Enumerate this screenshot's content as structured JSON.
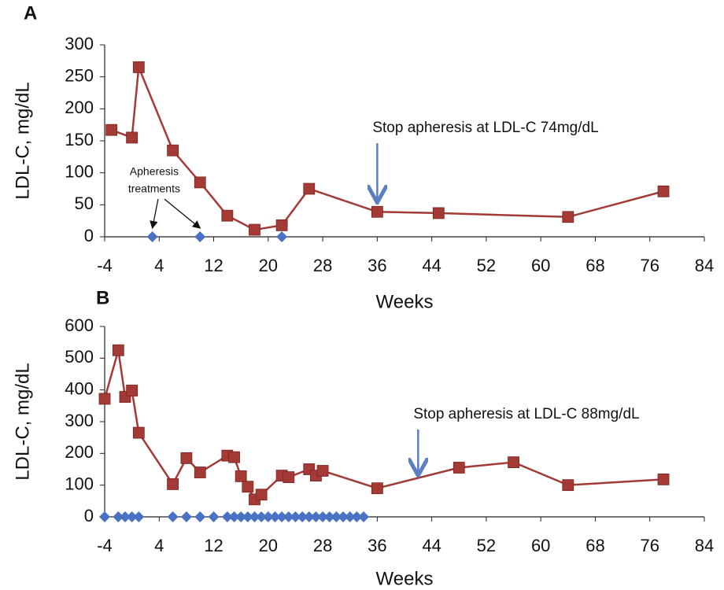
{
  "chart_data": [
    {
      "type": "line",
      "title": "A",
      "x_label": "Weeks",
      "y_label": "LDL-C, mg/dL",
      "xlim": [
        -4,
        84
      ],
      "xticks": [
        -4,
        4,
        12,
        20,
        28,
        36,
        44,
        52,
        60,
        68,
        76,
        84
      ],
      "ylim": [
        0,
        300
      ],
      "yticks": [
        0,
        50,
        100,
        150,
        200,
        250,
        300
      ],
      "grid": false,
      "series": [
        {
          "color": "#a33a35",
          "marker": "square",
          "line": true,
          "x": [
            -3,
            0,
            1,
            6,
            10,
            14,
            18,
            22,
            26,
            36,
            45,
            64,
            78
          ],
          "values": [
            167,
            155,
            265,
            135,
            85,
            33,
            11,
            18,
            75,
            39,
            37,
            31,
            71
          ]
        },
        {
          "color": "#4a72c4",
          "marker": "diamond",
          "line": false,
          "x": [
            3,
            10,
            22
          ],
          "values": [
            0,
            0,
            0
          ]
        }
      ],
      "annotations": [
        {
          "text": [
            "Apheresis",
            "treatments"
          ],
          "x": [
            3,
            10
          ]
        },
        {
          "text": "Stop apheresis at LDL-C 74mg/dL",
          "x": 36
        }
      ]
    },
    {
      "type": "line",
      "title": "B",
      "x_label": "Weeks",
      "y_label": "LDL-C, mg/dL",
      "xlim": [
        -4,
        84
      ],
      "xticks": [
        -4,
        4,
        12,
        20,
        28,
        36,
        44,
        52,
        60,
        68,
        76,
        84
      ],
      "ylim": [
        0,
        600
      ],
      "yticks": [
        0,
        100,
        200,
        300,
        400,
        500,
        600
      ],
      "grid": false,
      "series": [
        {
          "color": "#a33a35",
          "marker": "square",
          "line": true,
          "x": [
            -4,
            -2,
            -1,
            0,
            1,
            6,
            8,
            10,
            14,
            15,
            16,
            17,
            18,
            19,
            22,
            23,
            26,
            27,
            28,
            36,
            48,
            56,
            64,
            78
          ],
          "values": [
            372,
            525,
            378,
            398,
            265,
            103,
            185,
            140,
            193,
            188,
            128,
            95,
            55,
            70,
            130,
            125,
            150,
            130,
            145,
            90,
            155,
            172,
            100,
            118
          ]
        },
        {
          "color": "#4a72c4",
          "marker": "diamond",
          "line": false,
          "x": [
            -4,
            -2,
            -1,
            0,
            1,
            6,
            8,
            10,
            12,
            14,
            15,
            16,
            17,
            18,
            19,
            20,
            21,
            22,
            23,
            24,
            25,
            26,
            27,
            28,
            29,
            30,
            31,
            32,
            33,
            34
          ],
          "values": [
            0,
            0,
            0,
            0,
            0,
            0,
            0,
            0,
            0,
            0,
            0,
            0,
            0,
            0,
            0,
            0,
            0,
            0,
            0,
            0,
            0,
            0,
            0,
            0,
            0,
            0,
            0,
            0,
            0,
            0
          ]
        }
      ],
      "annotations": [
        {
          "text": "Stop apheresis at LDL-C 88mg/dL",
          "x": 42
        }
      ]
    }
  ]
}
